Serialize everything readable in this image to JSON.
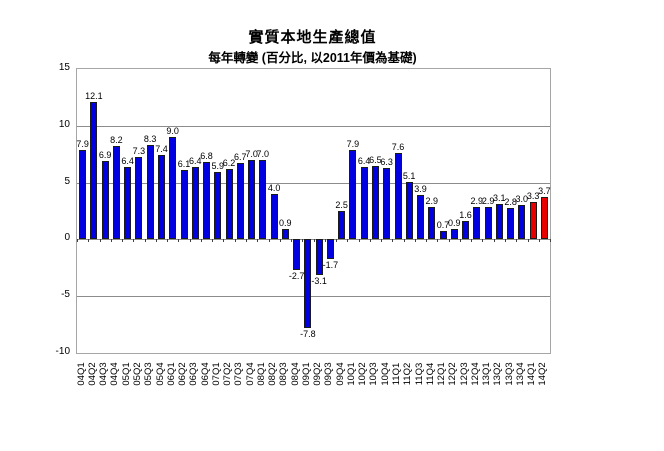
{
  "title": "實質本地生產總值",
  "subtitle": "每年轉變 (百分比, 以2011年價為基礎)",
  "colors": {
    "bar_default": "#0000e0",
    "bar_highlight": "#e80000",
    "bar_outline": "#1a1a1a",
    "gridline": "#8c8c8c",
    "plot_border": "#a6a6a6"
  },
  "chart_data": {
    "type": "bar",
    "categories": [
      "04Q1",
      "04Q2",
      "04Q3",
      "04Q4",
      "05Q1",
      "05Q2",
      "05Q3",
      "05Q4",
      "06Q1",
      "06Q2",
      "06Q3",
      "06Q4",
      "07Q1",
      "07Q2",
      "07Q3",
      "07Q4",
      "08Q1",
      "08Q2",
      "08Q3",
      "08Q4",
      "09Q1",
      "09Q2",
      "09Q3",
      "09Q4",
      "10Q1",
      "10Q2",
      "10Q3",
      "10Q4",
      "11Q1",
      "11Q2",
      "11Q3",
      "11Q4",
      "12Q1",
      "12Q2",
      "12Q3",
      "12Q4",
      "13Q1",
      "13Q2",
      "13Q3",
      "13Q4",
      "14Q1",
      "14Q2"
    ],
    "values": [
      7.9,
      12.1,
      6.9,
      8.2,
      6.4,
      7.3,
      8.3,
      7.4,
      9.0,
      6.1,
      6.4,
      6.8,
      5.9,
      6.2,
      6.7,
      7.0,
      7.0,
      4.0,
      0.9,
      -2.7,
      -7.8,
      -3.1,
      -1.7,
      2.5,
      7.9,
      6.4,
      6.5,
      6.3,
      7.6,
      5.1,
      3.9,
      2.9,
      0.7,
      0.9,
      1.6,
      2.9,
      2.9,
      3.1,
      2.8,
      3.0,
      3.3,
      3.7
    ],
    "highlight_categories": [
      "14Q1",
      "14Q2"
    ],
    "value_labels_decimals": 1,
    "y_ticks": [
      15,
      10,
      5,
      0,
      -5,
      -10
    ],
    "ylim": [
      -10,
      15
    ],
    "grid": true,
    "legend": "none",
    "xlabel": "",
    "ylabel": ""
  }
}
